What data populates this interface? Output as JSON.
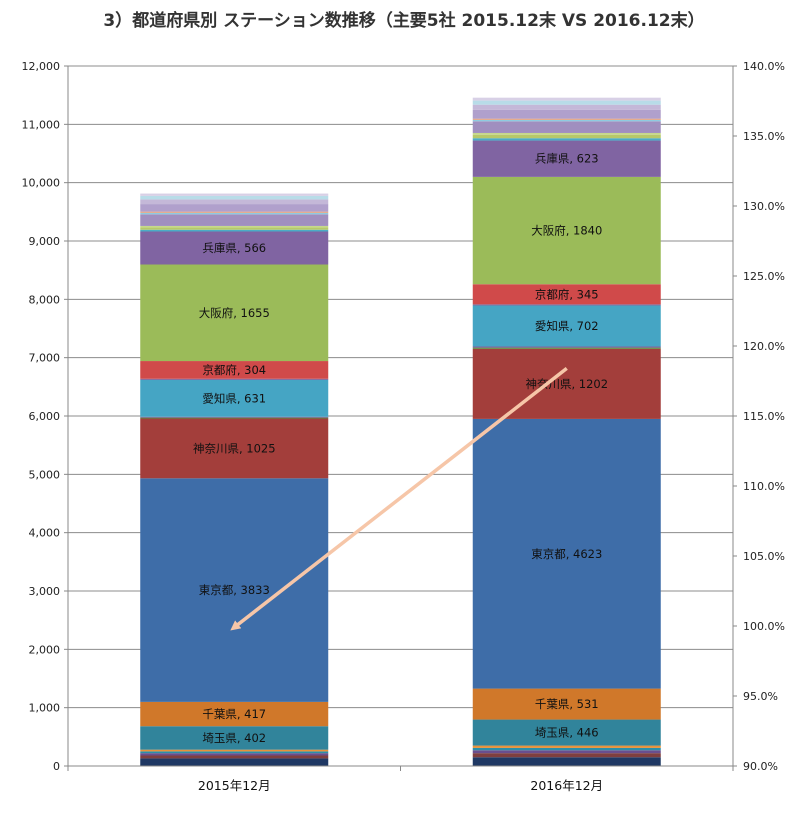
{
  "chart_data": {
    "type": "bar",
    "stacked": true,
    "title": "3）都道府県別 ステーション数推移（主要5社 2015.12末 VS 2016.12末）",
    "categories": [
      "2015年12月",
      "2016年12月"
    ],
    "y_axis": {
      "min": 0,
      "max": 12000,
      "step": 1000,
      "tick_labels": [
        "0",
        "1,000",
        "2,000",
        "3,000",
        "4,000",
        "5,000",
        "6,000",
        "7,000",
        "8,000",
        "9,000",
        "10,000",
        "11,000",
        "12,000"
      ]
    },
    "y2_axis": {
      "min": 90,
      "max": 140,
      "step": 5,
      "tick_labels": [
        "90.0%",
        "95.0%",
        "100.0%",
        "105.0%",
        "110.0%",
        "115.0%",
        "120.0%",
        "125.0%",
        "130.0%",
        "135.0%",
        "140.0%"
      ]
    },
    "grid": true,
    "series": [
      {
        "name": "",
        "color": "#1f3864",
        "values": [
          130,
          150
        ]
      },
      {
        "name": "",
        "color": "#7f3f3f",
        "values": [
          50,
          70
        ]
      },
      {
        "name": "",
        "color": "#6a4e8e",
        "values": [
          40,
          50
        ]
      },
      {
        "name": "",
        "color": "#2b8fa8",
        "values": [
          30,
          40
        ]
      },
      {
        "name": "",
        "color": "#e8923a",
        "values": [
          30,
          40
        ]
      },
      {
        "name": "埼玉県",
        "color": "#31849b",
        "values": [
          402,
          446
        ],
        "label": [
          "埼玉県, 402",
          "埼玉県, 446"
        ]
      },
      {
        "name": "千葉県",
        "color": "#d0782a",
        "values": [
          417,
          531
        ],
        "label": [
          "千葉県, 417",
          "千葉県, 531"
        ]
      },
      {
        "name": "東京都",
        "color": "#3e6da8",
        "values": [
          3833,
          4623
        ],
        "label": [
          "東京都, 3833",
          "東京都, 4623"
        ]
      },
      {
        "name": "神奈川県",
        "color": "#a33e3b",
        "values": [
          1025,
          1202
        ],
        "label": [
          "神奈川県, 1025",
          "神奈川県, 1202"
        ]
      },
      {
        "name": "",
        "color": "#5a8c3a",
        "values": [
          15,
          20
        ]
      },
      {
        "name": "",
        "color": "#7a5c9e",
        "values": [
          15,
          20
        ]
      },
      {
        "name": "愛知県",
        "color": "#45a5c4",
        "values": [
          631,
          702
        ],
        "label": [
          "愛知県, 631",
          "愛知県, 702"
        ]
      },
      {
        "name": "",
        "color": "#7f6a9e",
        "values": [
          20,
          20
        ]
      },
      {
        "name": "京都府",
        "color": "#d04a4a",
        "values": [
          304,
          345
        ],
        "label": [
          "京都府, 304",
          "京都府, 345"
        ]
      },
      {
        "name": "大阪府",
        "color": "#9bbb59",
        "values": [
          1655,
          1840
        ],
        "label": [
          "大阪府, 1655",
          "大阪府, 1840"
        ]
      },
      {
        "name": "兵庫県",
        "color": "#8064a2",
        "values": [
          566,
          623
        ],
        "label": [
          "兵庫県, 566",
          "兵庫県, 623"
        ]
      },
      {
        "name": "",
        "color": "#4bacc6",
        "values": [
          30,
          40
        ]
      },
      {
        "name": "",
        "color": "#b7c96a",
        "values": [
          40,
          60
        ]
      },
      {
        "name": "",
        "color": "#c6d98a",
        "values": [
          25,
          30
        ]
      },
      {
        "name": "",
        "color": "#a08fbf",
        "values": [
          200,
          200
        ]
      },
      {
        "name": "",
        "color": "#8ecbe0",
        "values": [
          25,
          25
        ]
      },
      {
        "name": "",
        "color": "#e8a07a",
        "values": [
          20,
          20
        ]
      },
      {
        "name": "",
        "color": "#b0a0cc",
        "values": [
          130,
          150
        ]
      },
      {
        "name": "",
        "color": "#c4b8d8",
        "values": [
          80,
          90
        ]
      },
      {
        "name": "",
        "color": "#b8dce8",
        "values": [
          60,
          70
        ]
      },
      {
        "name": "",
        "color": "#d8d0e6",
        "values": [
          40,
          50
        ]
      }
    ],
    "line_series": {
      "name": "",
      "axis": "y2",
      "color": "#f6c6a8",
      "values": [
        99.9,
        118.4
      ]
    }
  }
}
